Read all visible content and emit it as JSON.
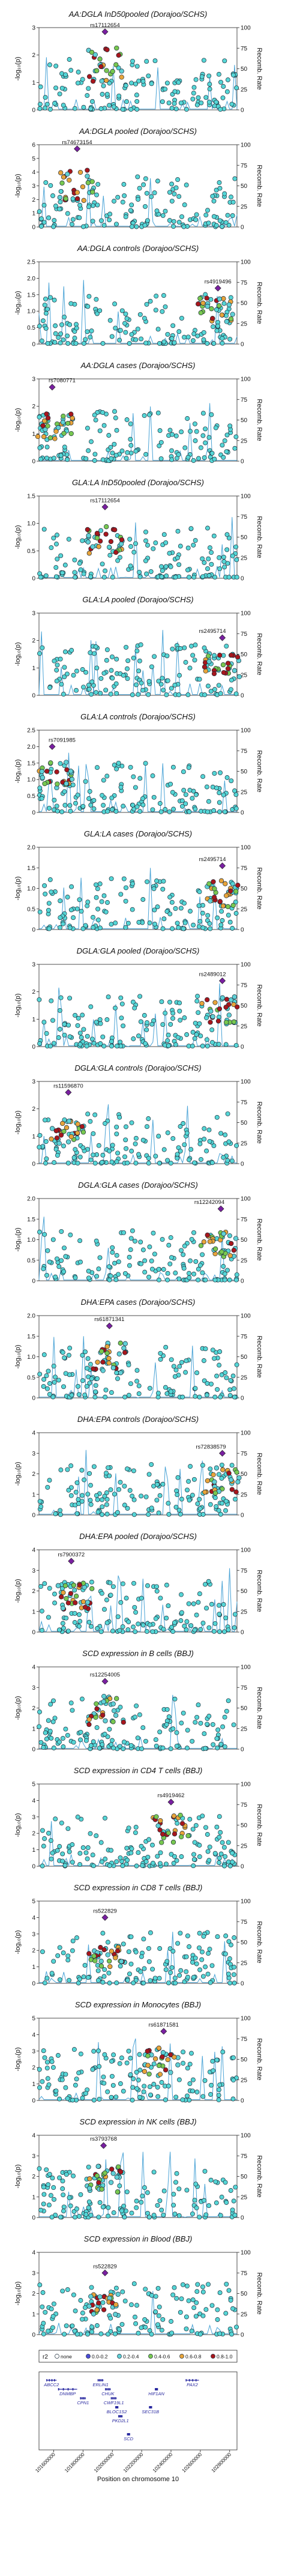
{
  "colors": {
    "recomb_line": "#4aa3d6",
    "point_default": "#55d6d6",
    "point_stroke": "#1b2a38",
    "lead_snp": "#7a1fa2",
    "r2_bins": [
      "#4b4bd8",
      "#5fd0d6",
      "#78c850",
      "#e8a43a",
      "#a8161c"
    ]
  },
  "shared": {
    "ylabel_left": "-log₁₀(p)",
    "ylabel_right": "Recomb. Rate",
    "right_ticks": [
      "100",
      "75",
      "50",
      "25",
      "0"
    ]
  },
  "chart_data": [
    {
      "type": "scatter",
      "title": "AA:DGLA InD50pooled (Dorajoo/SCHS)",
      "lead_label": "rs17112654",
      "ylim": [
        0,
        3
      ],
      "yticks": [
        "0",
        "1",
        "2",
        "3"
      ],
      "lead": [
        101950000,
        2.85
      ],
      "cluster": [
        101950000,
        2.3
      ],
      "spread": 1.6
    },
    {
      "type": "scatter",
      "title": "AA:DGLA pooled (Dorajoo/SCHS)",
      "lead_label": "rs74673154",
      "ylim": [
        0,
        6
      ],
      "yticks": [
        "0",
        "1",
        "2",
        "3",
        "4",
        "5",
        "6"
      ],
      "lead": [
        101760000,
        5.7
      ],
      "cluster": [
        101760000,
        4.2
      ],
      "spread": 2.5
    },
    {
      "type": "scatter",
      "title": "AA:DGLA controls (Dorajoo/SCHS)",
      "lead_label": "rs4919496",
      "ylim": [
        0,
        2.5
      ],
      "yticks": [
        "0",
        "0.5",
        "1.0",
        "1.5",
        "2.0",
        "2.5"
      ],
      "lead": [
        102720000,
        1.7
      ],
      "cluster": [
        102700000,
        1.4
      ],
      "spread": 1.6
    },
    {
      "type": "scatter",
      "title": "AA:DGLA cases (Dorajoo/SCHS)",
      "lead_label": "rs7080771",
      "ylim": [
        0,
        3
      ],
      "yticks": [
        "0",
        "1",
        "2",
        "3"
      ],
      "lead": [
        101590000,
        2.7
      ],
      "cluster": [
        101610000,
        1.8
      ],
      "spread": 1.9
    },
    {
      "type": "scatter",
      "title": "GLA:LA InD50pooled (Dorajoo/SCHS)",
      "lead_label": "rs17112654",
      "ylim": [
        0,
        1.5
      ],
      "yticks": [
        "0",
        "0.5",
        "1.0",
        "1.5"
      ],
      "lead": [
        101950000,
        1.3
      ],
      "cluster": [
        101950000,
        1.0
      ],
      "spread": 1.2
    },
    {
      "type": "scatter",
      "title": "GLA:LA pooled (Dorajoo/SCHS)",
      "lead_label": "rs2495714",
      "ylim": [
        0,
        3
      ],
      "yticks": [
        "0",
        "1",
        "2",
        "3"
      ],
      "lead": [
        102750000,
        2.1
      ],
      "cluster": [
        102750000,
        1.5
      ],
      "spread": 1.2
    },
    {
      "type": "scatter",
      "title": "GLA:LA controls (Dorajoo/SCHS)",
      "lead_label": "rs7091985",
      "ylim": [
        0,
        2.5
      ],
      "yticks": [
        "0",
        "0.5",
        "1.0",
        "1.5",
        "2.0",
        "2.5"
      ],
      "lead": [
        101590000,
        2.0
      ],
      "cluster": [
        101610000,
        1.6
      ],
      "spread": 1.7
    },
    {
      "type": "scatter",
      "title": "GLA:LA cases (Dorajoo/SCHS)",
      "lead_label": "rs2495714",
      "ylim": [
        0,
        2
      ],
      "yticks": [
        "0",
        "0.5",
        "1.0",
        "1.5",
        "2.0"
      ],
      "lead": [
        102750000,
        1.55
      ],
      "cluster": [
        102750000,
        1.2
      ],
      "spread": 1.5
    },
    {
      "type": "scatter",
      "title": "DGLA:GLA pooled (Dorajoo/SCHS)",
      "lead_label": "rs2489012",
      "ylim": [
        0,
        3
      ],
      "yticks": [
        "0",
        "1",
        "2",
        "3"
      ],
      "lead": [
        102750000,
        2.4
      ],
      "cluster": [
        102730000,
        1.9
      ],
      "spread": 1.7
    },
    {
      "type": "scatter",
      "title": "DGLA:GLA controls (Dorajoo/SCHS)",
      "lead_label": "rs11596870",
      "ylim": [
        0,
        3
      ],
      "yticks": [
        "0",
        "1",
        "2",
        "3"
      ],
      "lead": [
        101700000,
        2.6
      ],
      "cluster": [
        101680000,
        1.6
      ],
      "spread": 1.9
    },
    {
      "type": "scatter",
      "title": "DGLA:GLA cases (Dorajoo/SCHS)",
      "lead_label": "rs12242094",
      "ylim": [
        0,
        2
      ],
      "yticks": [
        "0",
        "0.5",
        "1.0",
        "1.5",
        "2.0"
      ],
      "lead": [
        102740000,
        1.75
      ],
      "cluster": [
        102720000,
        1.3
      ],
      "spread": 1.5
    },
    {
      "type": "scatter",
      "title": "DHA:EPA cases (Dorajoo/SCHS)",
      "lead_label": "rs61871341",
      "ylim": [
        0,
        2
      ],
      "yticks": [
        "0",
        "0.5",
        "1.0",
        "1.5",
        "2.0"
      ],
      "lead": [
        101980000,
        1.75
      ],
      "cluster": [
        101980000,
        1.35
      ],
      "spread": 1.4
    },
    {
      "type": "scatter",
      "title": "DHA:EPA controls (Dorajoo/SCHS)",
      "lead_label": "rs72838579",
      "ylim": [
        0,
        4
      ],
      "yticks": [
        "0",
        "1",
        "2",
        "3",
        "4"
      ],
      "lead": [
        102750000,
        3.0
      ],
      "cluster": [
        102750000,
        2.3
      ],
      "spread": 2.2
    },
    {
      "type": "scatter",
      "title": "DHA:EPA pooled (Dorajoo/SCHS)",
      "lead_label": "rs7900372",
      "ylim": [
        0,
        4
      ],
      "yticks": [
        "0",
        "1",
        "2",
        "3",
        "4"
      ],
      "lead": [
        101720000,
        3.45
      ],
      "cluster": [
        101740000,
        2.4
      ],
      "spread": 2.4
    },
    {
      "type": "scatter",
      "title": "SCD expression in B cells (BBJ)",
      "lead_label": "rs12254005",
      "ylim": [
        0,
        4
      ],
      "yticks": [
        "0",
        "1",
        "2",
        "3",
        "4"
      ],
      "lead": [
        101950000,
        3.3
      ],
      "cluster": [
        101960000,
        2.6
      ],
      "spread": 1.8
    },
    {
      "type": "scatter",
      "title": "SCD expression in CD4 T cells (BBJ)",
      "lead_label": "rs4919462",
      "ylim": [
        0,
        5
      ],
      "yticks": [
        "0",
        "1",
        "2",
        "3",
        "4",
        "5"
      ],
      "lead": [
        102400000,
        3.9
      ],
      "cluster": [
        102400000,
        3.2
      ],
      "spread": 1.4
    },
    {
      "type": "scatter",
      "title": "SCD expression in CD8 T cells (BBJ)",
      "lead_label": "rs522829",
      "ylim": [
        0,
        5
      ],
      "yticks": [
        "0",
        "1",
        "2",
        "3",
        "4",
        "5"
      ],
      "lead": [
        101950000,
        4.0
      ],
      "cluster": [
        101950000,
        2.2
      ],
      "spread": 2.6
    },
    {
      "type": "scatter",
      "title": "SCD expression in Monocytes (BBJ)",
      "lead_label": "rs61871581",
      "ylim": [
        0,
        5
      ],
      "yticks": [
        "0",
        "1",
        "2",
        "3",
        "4",
        "5"
      ],
      "lead": [
        102350000,
        4.2
      ],
      "cluster": [
        102330000,
        3.2
      ],
      "spread": 2.3
    },
    {
      "type": "scatter",
      "title": "SCD expression in NK cells (BBJ)",
      "lead_label": "rs3793768",
      "ylim": [
        0,
        4
      ],
      "yticks": [
        "0",
        "1",
        "2",
        "3",
        "4"
      ],
      "lead": [
        101940000,
        3.5
      ],
      "cluster": [
        101940000,
        2.5
      ],
      "spread": 2.2
    },
    {
      "type": "scatter",
      "title": "SCD expression in Blood (BBJ)",
      "lead_label": "rs522829",
      "ylim": [
        0,
        4
      ],
      "yticks": [
        "0",
        "1",
        "2",
        "3",
        "4"
      ],
      "lead": [
        101950000,
        3.0
      ],
      "cluster": [
        101950000,
        2.0
      ],
      "spread": 2.2
    }
  ],
  "gene_track": {
    "genes": [
      {
        "name": "ABCC2",
        "start": 101550000,
        "end": 101620000,
        "row": 0
      },
      {
        "name": "DNMBP",
        "start": 101630000,
        "end": 101760000,
        "row": 1
      },
      {
        "name": "CPN1",
        "start": 101780000,
        "end": 101820000,
        "row": 2
      },
      {
        "name": "ERLIN1",
        "start": 101900000,
        "end": 101940000,
        "row": 0
      },
      {
        "name": "CHUK",
        "start": 101950000,
        "end": 101990000,
        "row": 1
      },
      {
        "name": "CWF19L1",
        "start": 101990000,
        "end": 102030000,
        "row": 2
      },
      {
        "name": "BLOC1S2",
        "start": 102020000,
        "end": 102040000,
        "row": 3
      },
      {
        "name": "PKD2L1",
        "start": 102040000,
        "end": 102070000,
        "row": 4
      },
      {
        "name": "SCD",
        "start": 102100000,
        "end": 102120000,
        "row": 6
      },
      {
        "name": "HIF1AN",
        "start": 102290000,
        "end": 102310000,
        "row": 1
      },
      {
        "name": "PAX2",
        "start": 102500000,
        "end": 102590000,
        "row": 0
      },
      {
        "name": "SEC31B",
        "start": 102250000,
        "end": 102270000,
        "row": 3
      }
    ],
    "x_ticks": [
      "101600000",
      "101800000",
      "102000000",
      "102200000",
      "102400000",
      "102600000",
      "102800000"
    ],
    "xlabel": "Position on chromosome 10",
    "xlim": [
      101500000,
      102850000
    ]
  },
  "legend": {
    "label": "r2",
    "bins": [
      "none",
      "0.0-0.2",
      "0.2-0.4",
      "0.4-0.6",
      "0.6-0.8",
      "0.8-1.0"
    ]
  }
}
